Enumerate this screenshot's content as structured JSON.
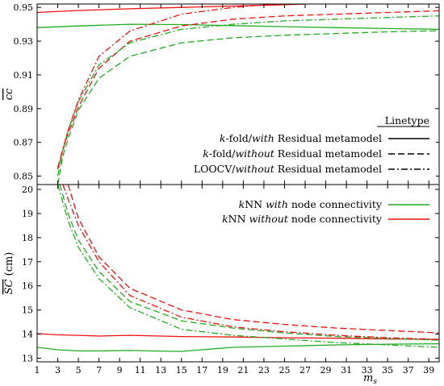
{
  "chart_data": [
    {
      "type": "line",
      "ylabel": "cc",
      "xlim": [
        1,
        40
      ],
      "ylim": [
        0.845,
        0.952
      ],
      "yticks": [
        0.85,
        0.87,
        0.89,
        0.91,
        0.93,
        0.95
      ],
      "ytick_labels": [
        "0.85",
        "0.87",
        "0.89",
        "0.91",
        "0.93",
        "0.95"
      ],
      "legend": {
        "title": "Linetype",
        "entries": [
          {
            "pre": "k",
            "mid": "-fold/",
            "emph": "with",
            "post": " Residual metamodel",
            "dash": "solid"
          },
          {
            "pre": "k",
            "mid": "-fold/",
            "emph": "without",
            "post": " Residual metamodel",
            "dash": "dashed"
          },
          {
            "pre": "",
            "mid": "LOOCV/",
            "emph": "without",
            "post": " Residual metamodel",
            "dash": "dashdot"
          }
        ]
      },
      "series": [
        {
          "color": "#22aa22",
          "dash": "solid",
          "x": [
            1,
            5,
            10,
            15,
            20,
            25,
            30,
            35,
            40
          ],
          "y": [
            0.938,
            0.939,
            0.94,
            0.9398,
            0.9392,
            0.9386,
            0.938,
            0.9375,
            0.937
          ]
        },
        {
          "color": "#ee1111",
          "dash": "solid",
          "x": [
            1,
            5,
            10,
            15,
            20,
            25,
            27
          ],
          "y": [
            0.947,
            0.9482,
            0.9492,
            0.95,
            0.9508,
            0.9516,
            0.952
          ]
        },
        {
          "color": "#22aa22",
          "dash": "dashed",
          "x": [
            3,
            3.5,
            4,
            5,
            7,
            10,
            15,
            20,
            25,
            30,
            35,
            40
          ],
          "y": [
            0.845,
            0.862,
            0.872,
            0.889,
            0.908,
            0.921,
            0.929,
            0.932,
            0.9335,
            0.9345,
            0.9355,
            0.9362
          ]
        },
        {
          "color": "#ee1111",
          "dash": "dashed",
          "x": [
            3,
            3.5,
            4,
            5,
            7,
            10,
            15,
            20,
            25,
            30,
            35,
            40
          ],
          "y": [
            0.855,
            0.866,
            0.875,
            0.891,
            0.914,
            0.93,
            0.939,
            0.943,
            0.945,
            0.946,
            0.947,
            0.948
          ]
        },
        {
          "color": "#22aa22",
          "dash": "dashdot",
          "x": [
            3,
            3.5,
            4,
            5,
            7,
            10,
            15,
            20,
            25,
            30,
            35,
            40
          ],
          "y": [
            0.85,
            0.865,
            0.877,
            0.894,
            0.916,
            0.929,
            0.937,
            0.94,
            0.942,
            0.943,
            0.944,
            0.945
          ]
        },
        {
          "color": "#ee1111",
          "dash": "dashdot",
          "x": [
            3,
            3.5,
            4,
            5,
            7,
            10,
            15,
            20,
            23,
            25,
            27
          ],
          "y": [
            0.854,
            0.866,
            0.877,
            0.895,
            0.921,
            0.936,
            0.946,
            0.95,
            0.9515,
            0.9518,
            0.952
          ]
        }
      ]
    },
    {
      "type": "line",
      "ylabel": "SC (cm)",
      "xlabel": "ms",
      "xlim": [
        1,
        40
      ],
      "ylim": [
        12.85,
        20.2
      ],
      "xticks": [
        1,
        3,
        5,
        7,
        9,
        11,
        13,
        15,
        17,
        19,
        21,
        23,
        25,
        27,
        29,
        31,
        33,
        35,
        37,
        39
      ],
      "xtick_labels": [
        "1",
        "3",
        "5",
        "7",
        "9",
        "11",
        "13",
        "15",
        "17",
        "19",
        "21",
        "23",
        "25",
        "27",
        "29",
        "31",
        "33",
        "35",
        "37",
        "39"
      ],
      "yticks": [
        13,
        14,
        15,
        16,
        17,
        18,
        19,
        20
      ],
      "ytick_labels": [
        "13",
        "14",
        "15",
        "16",
        "17",
        "18",
        "19",
        "20"
      ],
      "legend": {
        "entries": [
          {
            "pre": "k",
            "mid": "NN ",
            "emph": "with",
            "post": " node connectivity",
            "color": "#22aa22"
          },
          {
            "pre": "k",
            "mid": "NN ",
            "emph": "without",
            "post": " node connectivity",
            "color": "#ee1111"
          }
        ]
      },
      "series": [
        {
          "color": "#22aa22",
          "dash": "solid",
          "x": [
            1,
            3,
            5,
            7,
            10,
            12,
            15,
            17,
            20,
            25,
            30,
            35,
            40
          ],
          "y": [
            13.45,
            13.35,
            13.3,
            13.3,
            13.32,
            13.3,
            13.28,
            13.35,
            13.45,
            13.5,
            13.55,
            13.58,
            13.6
          ]
        },
        {
          "color": "#ee1111",
          "dash": "solid",
          "x": [
            1,
            3,
            5,
            7,
            10,
            15,
            20,
            25,
            30,
            35,
            40
          ],
          "y": [
            14.02,
            13.97,
            13.95,
            13.92,
            13.95,
            13.9,
            13.88,
            13.85,
            13.83,
            13.8,
            13.78
          ]
        },
        {
          "color": "#22aa22",
          "dash": "dashed",
          "x": [
            3.2,
            4,
            5,
            7,
            10,
            15,
            20,
            25,
            30,
            35,
            40
          ],
          "y": [
            20.2,
            19.0,
            17.9,
            16.6,
            15.35,
            14.55,
            14.25,
            14.05,
            13.9,
            13.82,
            13.75
          ]
        },
        {
          "color": "#ee1111",
          "dash": "dashed",
          "x": [
            4,
            5,
            7,
            10,
            15,
            20,
            25,
            30,
            35,
            40
          ],
          "y": [
            20.2,
            18.8,
            17.2,
            15.9,
            15.0,
            14.6,
            14.4,
            14.25,
            14.15,
            14.05
          ]
        },
        {
          "color": "#22aa22",
          "dash": "dashdot",
          "x": [
            3,
            4,
            5,
            7,
            10,
            15,
            20,
            25,
            30,
            35,
            40
          ],
          "y": [
            20.2,
            18.7,
            17.6,
            16.3,
            15.1,
            14.2,
            13.95,
            13.8,
            13.65,
            13.55,
            13.45
          ]
        },
        {
          "color": "#ee1111",
          "dash": "dashdot",
          "x": [
            3.5,
            4,
            5,
            7,
            10,
            15,
            20,
            25,
            30,
            35,
            40
          ],
          "y": [
            20.2,
            19.6,
            18.5,
            17.0,
            15.6,
            14.7,
            14.3,
            14.1,
            13.95,
            13.85,
            13.78
          ]
        }
      ]
    }
  ]
}
